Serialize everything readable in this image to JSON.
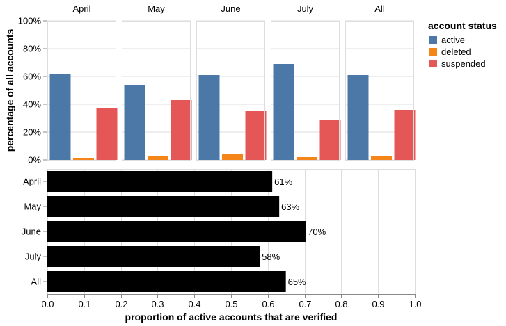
{
  "chart_data": [
    {
      "type": "bar",
      "facets": [
        "April",
        "May",
        "June",
        "July",
        "All"
      ],
      "categories": [
        "active",
        "deleted",
        "suspended"
      ],
      "series": [
        {
          "name": "April",
          "values": [
            62,
            1,
            37
          ]
        },
        {
          "name": "May",
          "values": [
            54,
            3,
            43
          ]
        },
        {
          "name": "June",
          "values": [
            61,
            4,
            35
          ]
        },
        {
          "name": "July",
          "values": [
            69,
            2,
            29
          ]
        },
        {
          "name": "All",
          "values": [
            61,
            3,
            36
          ]
        }
      ],
      "ylabel": "percentage of all accounts",
      "ylim": [
        0,
        100
      ],
      "yticks": [
        "0%",
        "20%",
        "40%",
        "60%",
        "80%",
        "100%"
      ],
      "legend": {
        "title": "account status",
        "placement": "top-right",
        "entries": [
          {
            "label": "active",
            "color": "#4c78a8"
          },
          {
            "label": "deleted",
            "color": "#f58518"
          },
          {
            "label": "suspended",
            "color": "#e45756"
          }
        ]
      },
      "grid": true
    },
    {
      "type": "bar",
      "orientation": "horizontal",
      "categories": [
        "April",
        "May",
        "June",
        "July",
        "All"
      ],
      "values": [
        0.612,
        0.631,
        0.703,
        0.578,
        0.649
      ],
      "data_labels": [
        "61%",
        "63%",
        "70%",
        "58%",
        "65%"
      ],
      "xlabel": "proportion of active accounts that are verified",
      "xlim": [
        0,
        1
      ],
      "xticks": [
        "0.0",
        "0.1",
        "0.2",
        "0.3",
        "0.4",
        "0.5",
        "0.6",
        "0.7",
        "0.8",
        "0.9",
        "1.0"
      ],
      "bar_color": "#000000",
      "grid": true
    }
  ]
}
